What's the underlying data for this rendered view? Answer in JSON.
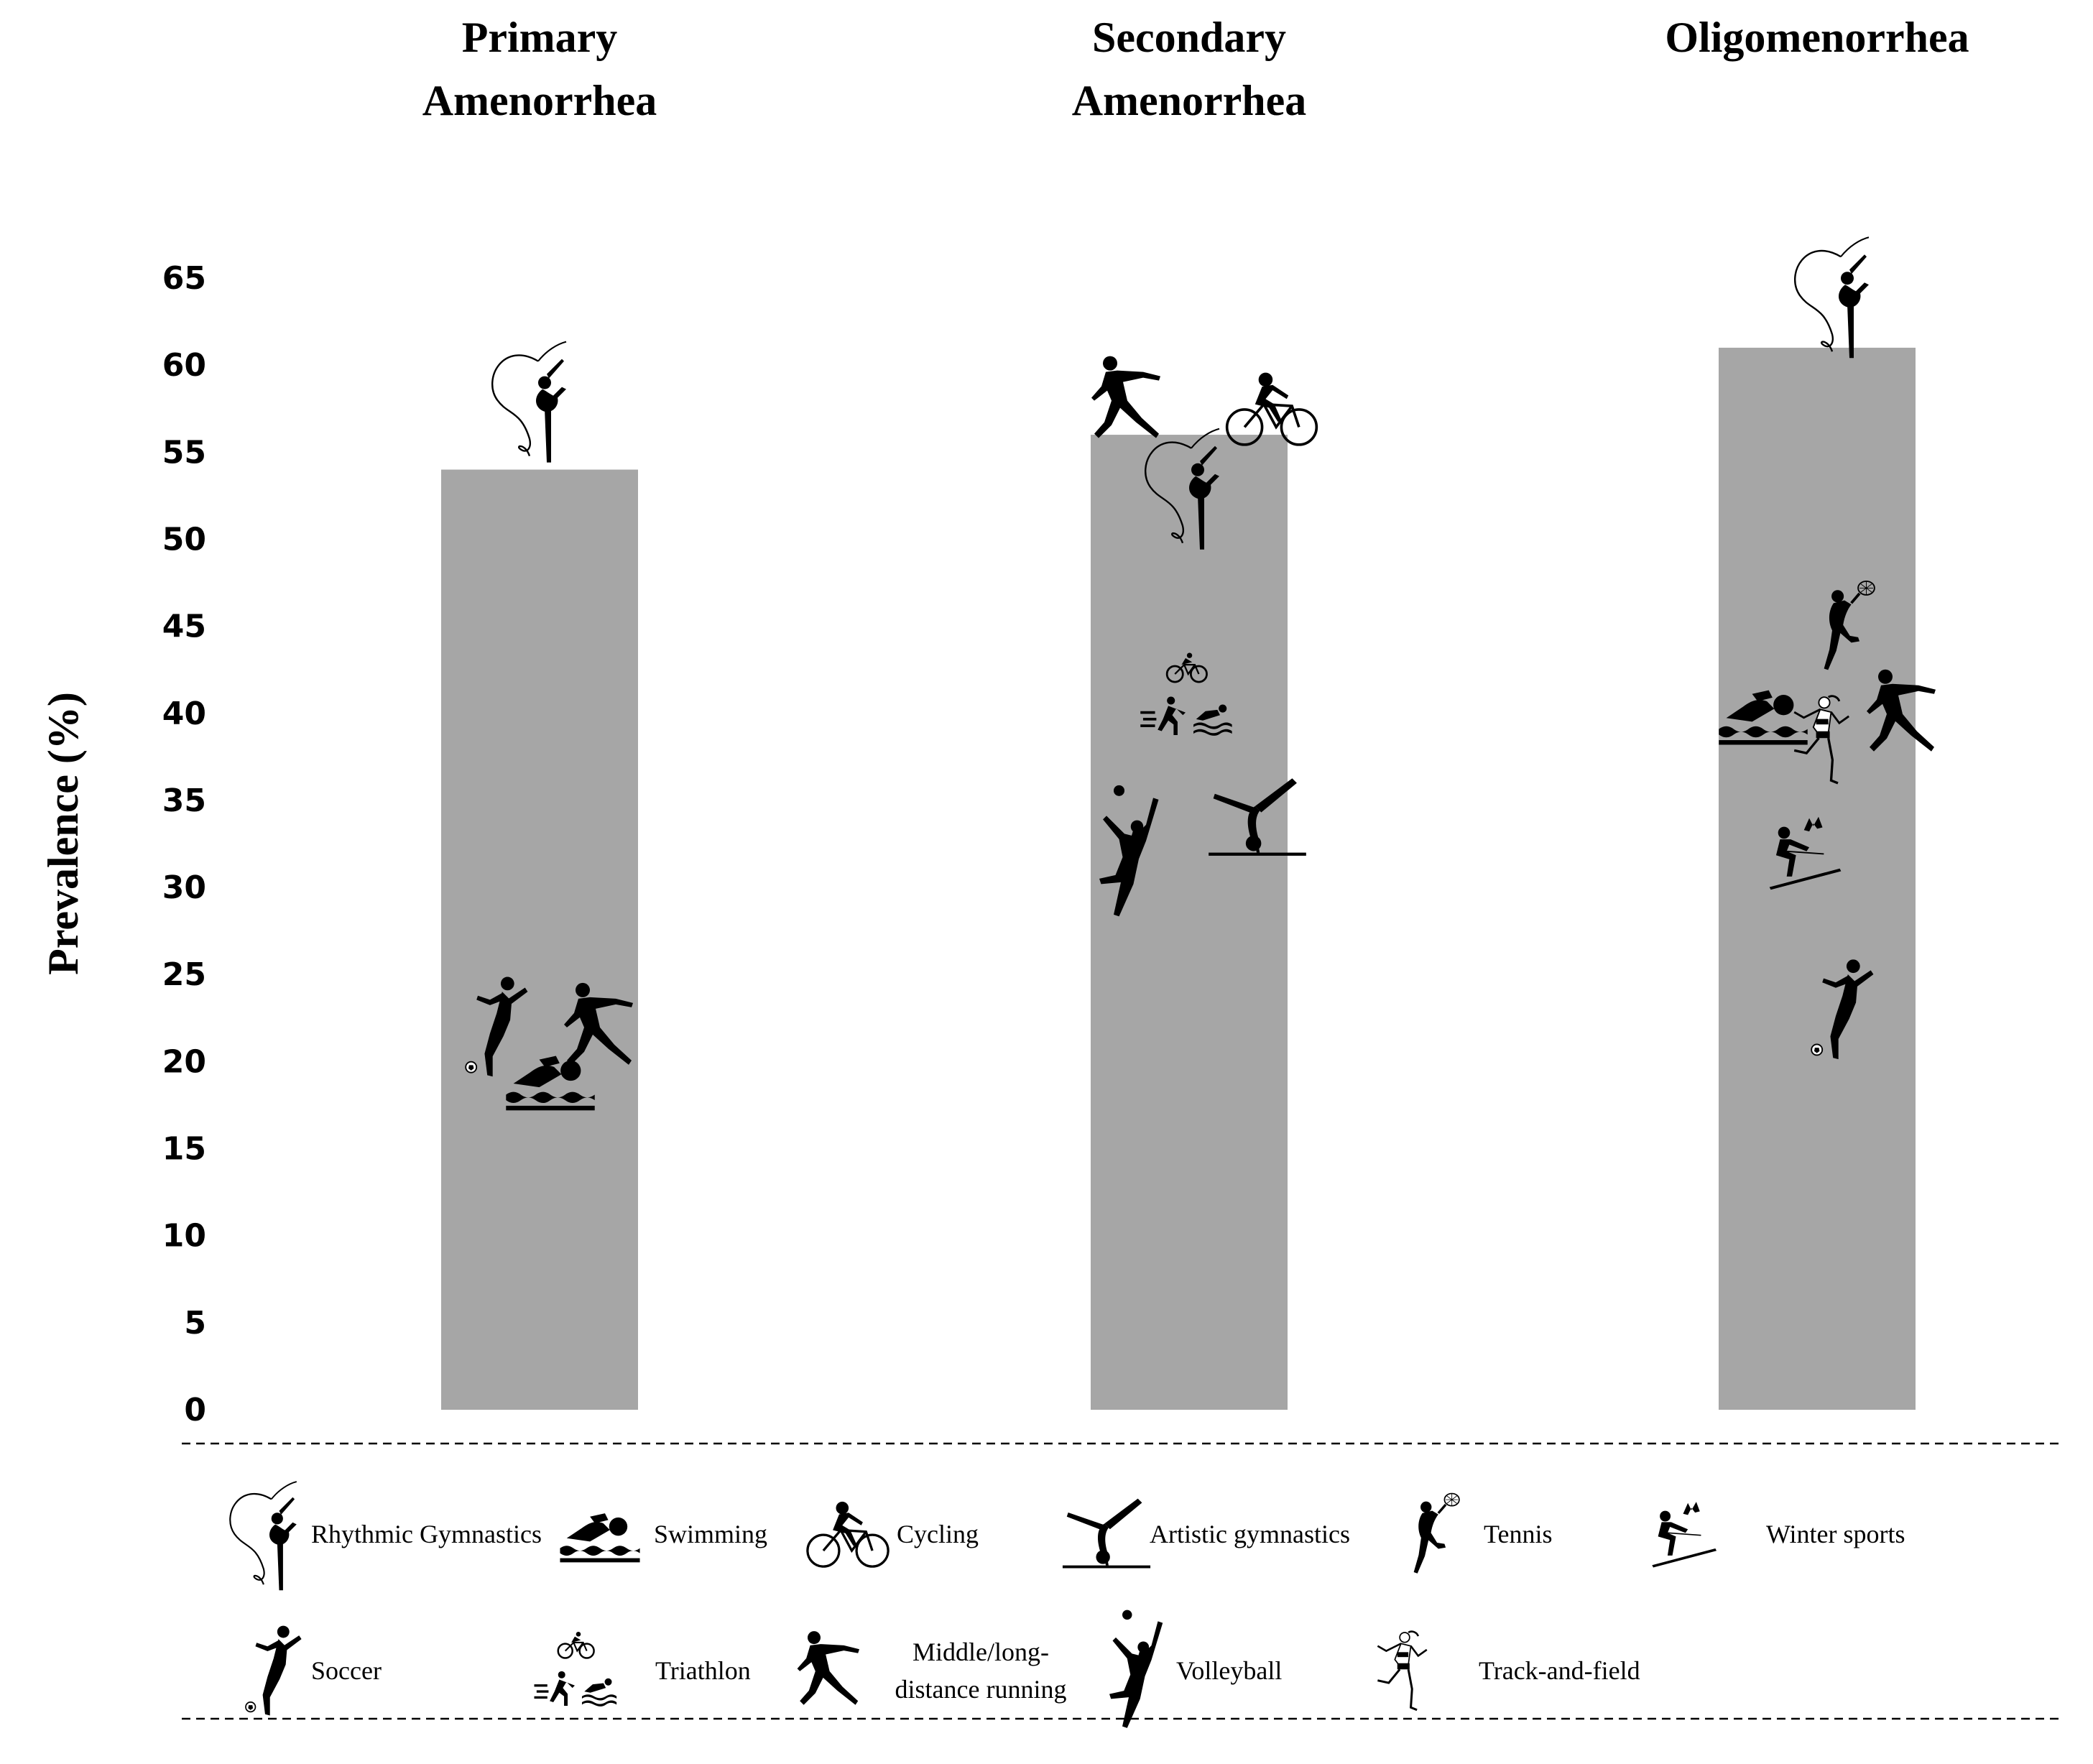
{
  "chart_data": {
    "type": "bar",
    "categories": [
      "Primary Amenorrhea",
      "Secondary Amenorrhea",
      "Oligomenorrhea"
    ],
    "title_lines": [
      [
        "Primary",
        "Amenorrhea"
      ],
      [
        "Secondary",
        "Amenorrhea"
      ],
      [
        "Oligomenorrhea"
      ]
    ],
    "values": [
      54,
      56,
      61
    ],
    "ylabel": "Prevalence (%)",
    "ylim": [
      0,
      65
    ],
    "yticks": [
      "0",
      "5",
      "10",
      "15",
      "20",
      "25",
      "30",
      "35",
      "40",
      "45",
      "50",
      "55",
      "60",
      "65"
    ],
    "bar_color": "#a6a6a6",
    "sport_icons": [
      {
        "category": 0,
        "sport": "rhythmic-gymnastics",
        "value": 58
      },
      {
        "category": 0,
        "sport": "soccer",
        "value": 22
      },
      {
        "category": 0,
        "sport": "swimming",
        "value": 19
      },
      {
        "category": 0,
        "sport": "middle-long-distance-running",
        "value": 22
      },
      {
        "category": 1,
        "sport": "middle-long-distance-running",
        "value": 58
      },
      {
        "category": 1,
        "sport": "cycling",
        "value": 57.5
      },
      {
        "category": 1,
        "sport": "rhythmic-gymnastics",
        "value": 53
      },
      {
        "category": 1,
        "sport": "triathlon",
        "value": 41
      },
      {
        "category": 1,
        "sport": "volleyball",
        "value": 32
      },
      {
        "category": 1,
        "sport": "artistic-gymnastics",
        "value": 34
      },
      {
        "category": 2,
        "sport": "rhythmic-gymnastics",
        "value": 64
      },
      {
        "category": 2,
        "sport": "tennis",
        "value": 45
      },
      {
        "category": 2,
        "sport": "swimming",
        "value": 40
      },
      {
        "category": 2,
        "sport": "track-and-field",
        "value": 38.5
      },
      {
        "category": 2,
        "sport": "middle-long-distance-running",
        "value": 40
      },
      {
        "category": 2,
        "sport": "winter-sports",
        "value": 32
      },
      {
        "category": 2,
        "sport": "soccer",
        "value": 23
      }
    ]
  },
  "legend": [
    {
      "sport": "rhythmic-gymnastics",
      "label_lines": [
        "Rhythmic Gymnastics"
      ]
    },
    {
      "sport": "swimming",
      "label_lines": [
        "Swimming"
      ]
    },
    {
      "sport": "cycling",
      "label_lines": [
        "Cycling"
      ]
    },
    {
      "sport": "artistic-gymnastics",
      "label_lines": [
        "Artistic gymnastics"
      ]
    },
    {
      "sport": "tennis",
      "label_lines": [
        "Tennis"
      ]
    },
    {
      "sport": "winter-sports",
      "label_lines": [
        "Winter sports"
      ]
    },
    {
      "sport": "soccer",
      "label_lines": [
        "Soccer"
      ]
    },
    {
      "sport": "triathlon",
      "label_lines": [
        "Triathlon"
      ]
    },
    {
      "sport": "middle-long-distance-running",
      "label_lines": [
        "Middle/long-",
        "distance running"
      ]
    },
    {
      "sport": "volleyball",
      "label_lines": [
        "Volleyball"
      ]
    },
    {
      "sport": "track-and-field",
      "label_lines": [
        "Track-and-field"
      ]
    }
  ]
}
